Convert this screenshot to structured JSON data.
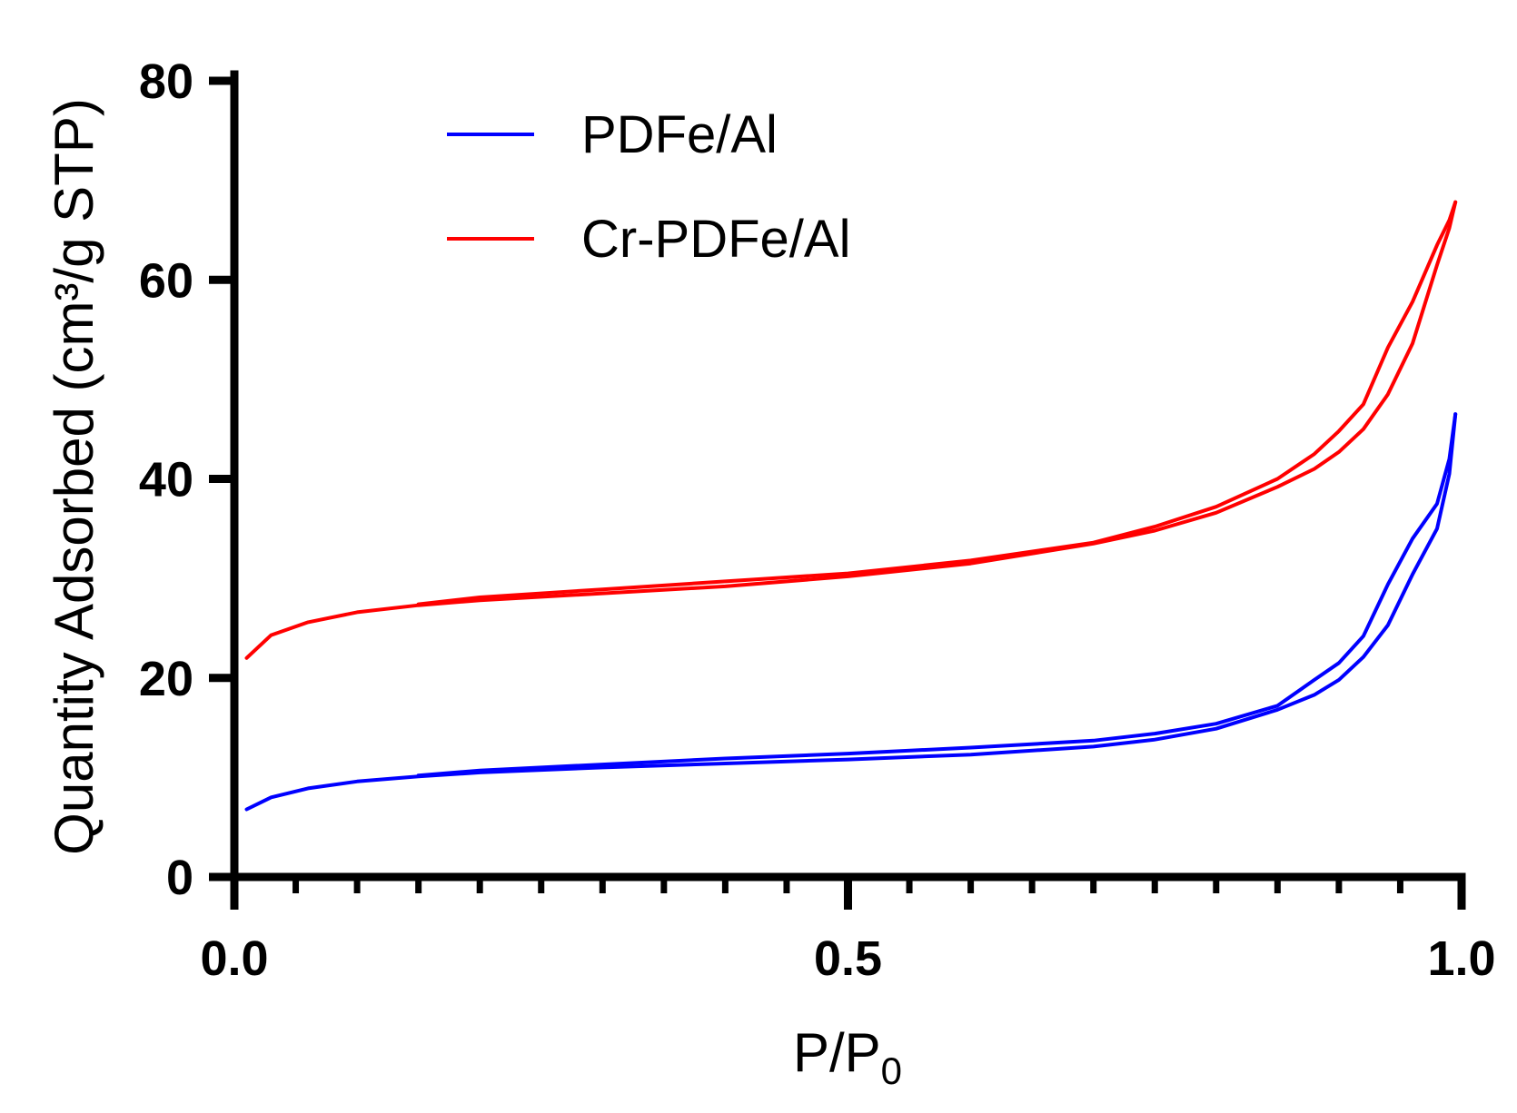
{
  "chart_data": {
    "type": "line",
    "title": "",
    "xlabel": "P/P",
    "xlabel_subscript": "0",
    "ylabel": "Quantity Adsorbed (cm³/g STP)",
    "xlim": [
      0,
      1
    ],
    "ylim": [
      0,
      80
    ],
    "xticks": [
      {
        "value": 0,
        "label": "0.0"
      },
      {
        "value": 0.5,
        "label": "0.5"
      },
      {
        "value": 1,
        "label": "1.0"
      }
    ],
    "yticks": [
      {
        "value": 0,
        "label": "0"
      },
      {
        "value": 20,
        "label": "20"
      },
      {
        "value": 40,
        "label": "40"
      },
      {
        "value": 60,
        "label": "60"
      },
      {
        "value": 80,
        "label": "80"
      }
    ],
    "x_minor_step": 0.05,
    "legend_position": "top-left",
    "grid": false,
    "series": [
      {
        "name": "PDFe/Al",
        "color": "#0000ff",
        "adsorption": {
          "x": [
            0.01,
            0.03,
            0.06,
            0.1,
            0.15,
            0.2,
            0.3,
            0.4,
            0.5,
            0.6,
            0.7,
            0.75,
            0.8,
            0.85,
            0.88,
            0.9,
            0.92,
            0.94,
            0.96,
            0.98,
            0.99,
            0.995
          ],
          "y": [
            6.8,
            8,
            8.9,
            9.6,
            10.1,
            10.5,
            11,
            11.4,
            11.8,
            12.3,
            13.1,
            13.8,
            14.9,
            16.8,
            18.3,
            19.8,
            22.1,
            25.3,
            30.4,
            35,
            40.5,
            46.5
          ]
        },
        "desorption": {
          "x": [
            0.995,
            0.99,
            0.98,
            0.96,
            0.94,
            0.92,
            0.9,
            0.88,
            0.85,
            0.8,
            0.75,
            0.7,
            0.6,
            0.5,
            0.4,
            0.3,
            0.2,
            0.15
          ],
          "y": [
            46.5,
            42,
            37.5,
            34,
            29.4,
            24.2,
            21.5,
            19.8,
            17.2,
            15.4,
            14.4,
            13.7,
            13,
            12.4,
            11.9,
            11.3,
            10.7,
            10.2
          ]
        }
      },
      {
        "name": "Cr-PDFe/Al",
        "color": "#ff0000",
        "adsorption": {
          "x": [
            0.01,
            0.03,
            0.06,
            0.1,
            0.15,
            0.2,
            0.3,
            0.4,
            0.5,
            0.6,
            0.7,
            0.75,
            0.8,
            0.85,
            0.88,
            0.9,
            0.92,
            0.94,
            0.96,
            0.98,
            0.99,
            0.995
          ],
          "y": [
            22,
            24.3,
            25.6,
            26.6,
            27.3,
            27.8,
            28.5,
            29.2,
            30.2,
            31.5,
            33.5,
            34.8,
            36.6,
            39.2,
            41,
            42.7,
            45,
            48.5,
            53.6,
            61.5,
            65.2,
            67.8
          ]
        },
        "desorption": {
          "x": [
            0.995,
            0.99,
            0.98,
            0.96,
            0.94,
            0.92,
            0.9,
            0.88,
            0.85,
            0.8,
            0.75,
            0.7,
            0.6,
            0.5,
            0.4,
            0.3,
            0.2,
            0.15
          ],
          "y": [
            67.8,
            66,
            63.5,
            57.8,
            53.2,
            47.5,
            44.8,
            42.5,
            40,
            37.2,
            35.2,
            33.6,
            31.8,
            30.5,
            29.7,
            28.9,
            28.1,
            27.4
          ]
        }
      }
    ]
  }
}
